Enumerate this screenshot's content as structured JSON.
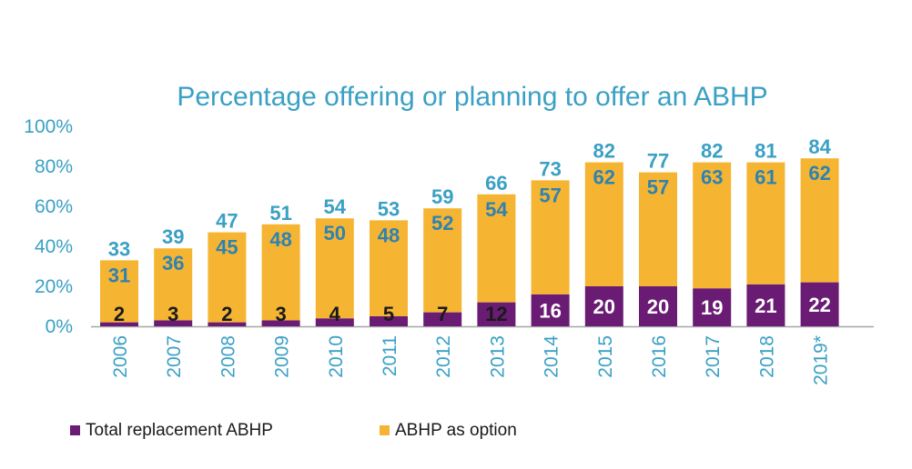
{
  "chart_data": {
    "type": "bar",
    "stacked": true,
    "title": "Percentage offering or planning to offer an ABHP",
    "categories": [
      "2006",
      "2007",
      "2008",
      "2009",
      "2010",
      "2011",
      "2012",
      "2013",
      "2014",
      "2015",
      "2016",
      "2017",
      "2018",
      "2019*"
    ],
    "series": [
      {
        "name": "Total replacement ABHP",
        "color": "#6a1b74",
        "values": [
          2,
          3,
          2,
          3,
          4,
          5,
          7,
          12,
          16,
          20,
          20,
          19,
          21,
          22
        ]
      },
      {
        "name": "ABHP as option",
        "color": "#f5b533",
        "values": [
          31,
          36,
          45,
          48,
          50,
          48,
          52,
          54,
          57,
          62,
          57,
          63,
          61,
          62
        ]
      }
    ],
    "totals": [
      33,
      39,
      47,
      51,
      54,
      53,
      59,
      66,
      73,
      82,
      77,
      82,
      81,
      84
    ],
    "ylim": [
      0,
      100
    ],
    "yticks": [
      "0%",
      "20%",
      "40%",
      "60%",
      "80%",
      "100%"
    ],
    "grid": false,
    "legend_position": "bottom-left",
    "colors": {
      "accent": "#3aa0c4",
      "title": "#3aa0c4"
    }
  }
}
